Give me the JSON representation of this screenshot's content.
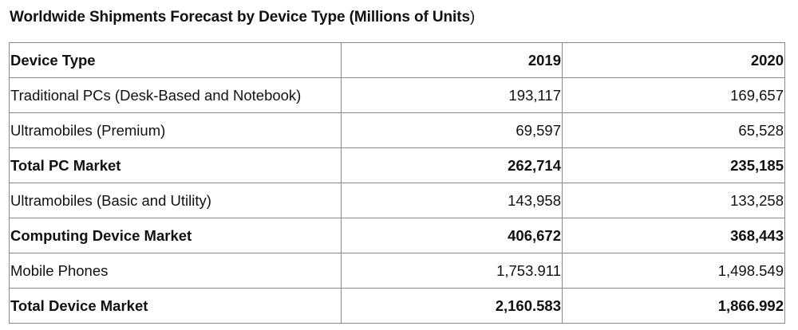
{
  "title": {
    "main": "Worldwide Shipments Forecast by Device Type (Millions of Units",
    "close_paren": ")"
  },
  "table": {
    "headers": [
      "Device Type",
      "2019",
      "2020"
    ],
    "rows": [
      {
        "label": "Traditional PCs (Desk-Based and Notebook)",
        "y2019": "193,117",
        "y2020": "169,657",
        "bold": false
      },
      {
        "label": "Ultramobiles (Premium)",
        "y2019": "69,597",
        "y2020": "65,528",
        "bold": false
      },
      {
        "label": "Total PC Market",
        "y2019": "262,714",
        "y2020": "235,185",
        "bold": true
      },
      {
        "label": "Ultramobiles (Basic and Utility)",
        "y2019": "143,958",
        "y2020": "133,258",
        "bold": false
      },
      {
        "label": "Computing Device Market",
        "y2019": "406,672",
        "y2020": "368,443",
        "bold": true
      },
      {
        "label": "Mobile Phones",
        "y2019": "1,753.911",
        "y2020": "1,498.549",
        "bold": false
      },
      {
        "label": "Total Device Market",
        "y2019": "2,160.583",
        "y2020": "1,866.992",
        "bold": true
      }
    ]
  }
}
